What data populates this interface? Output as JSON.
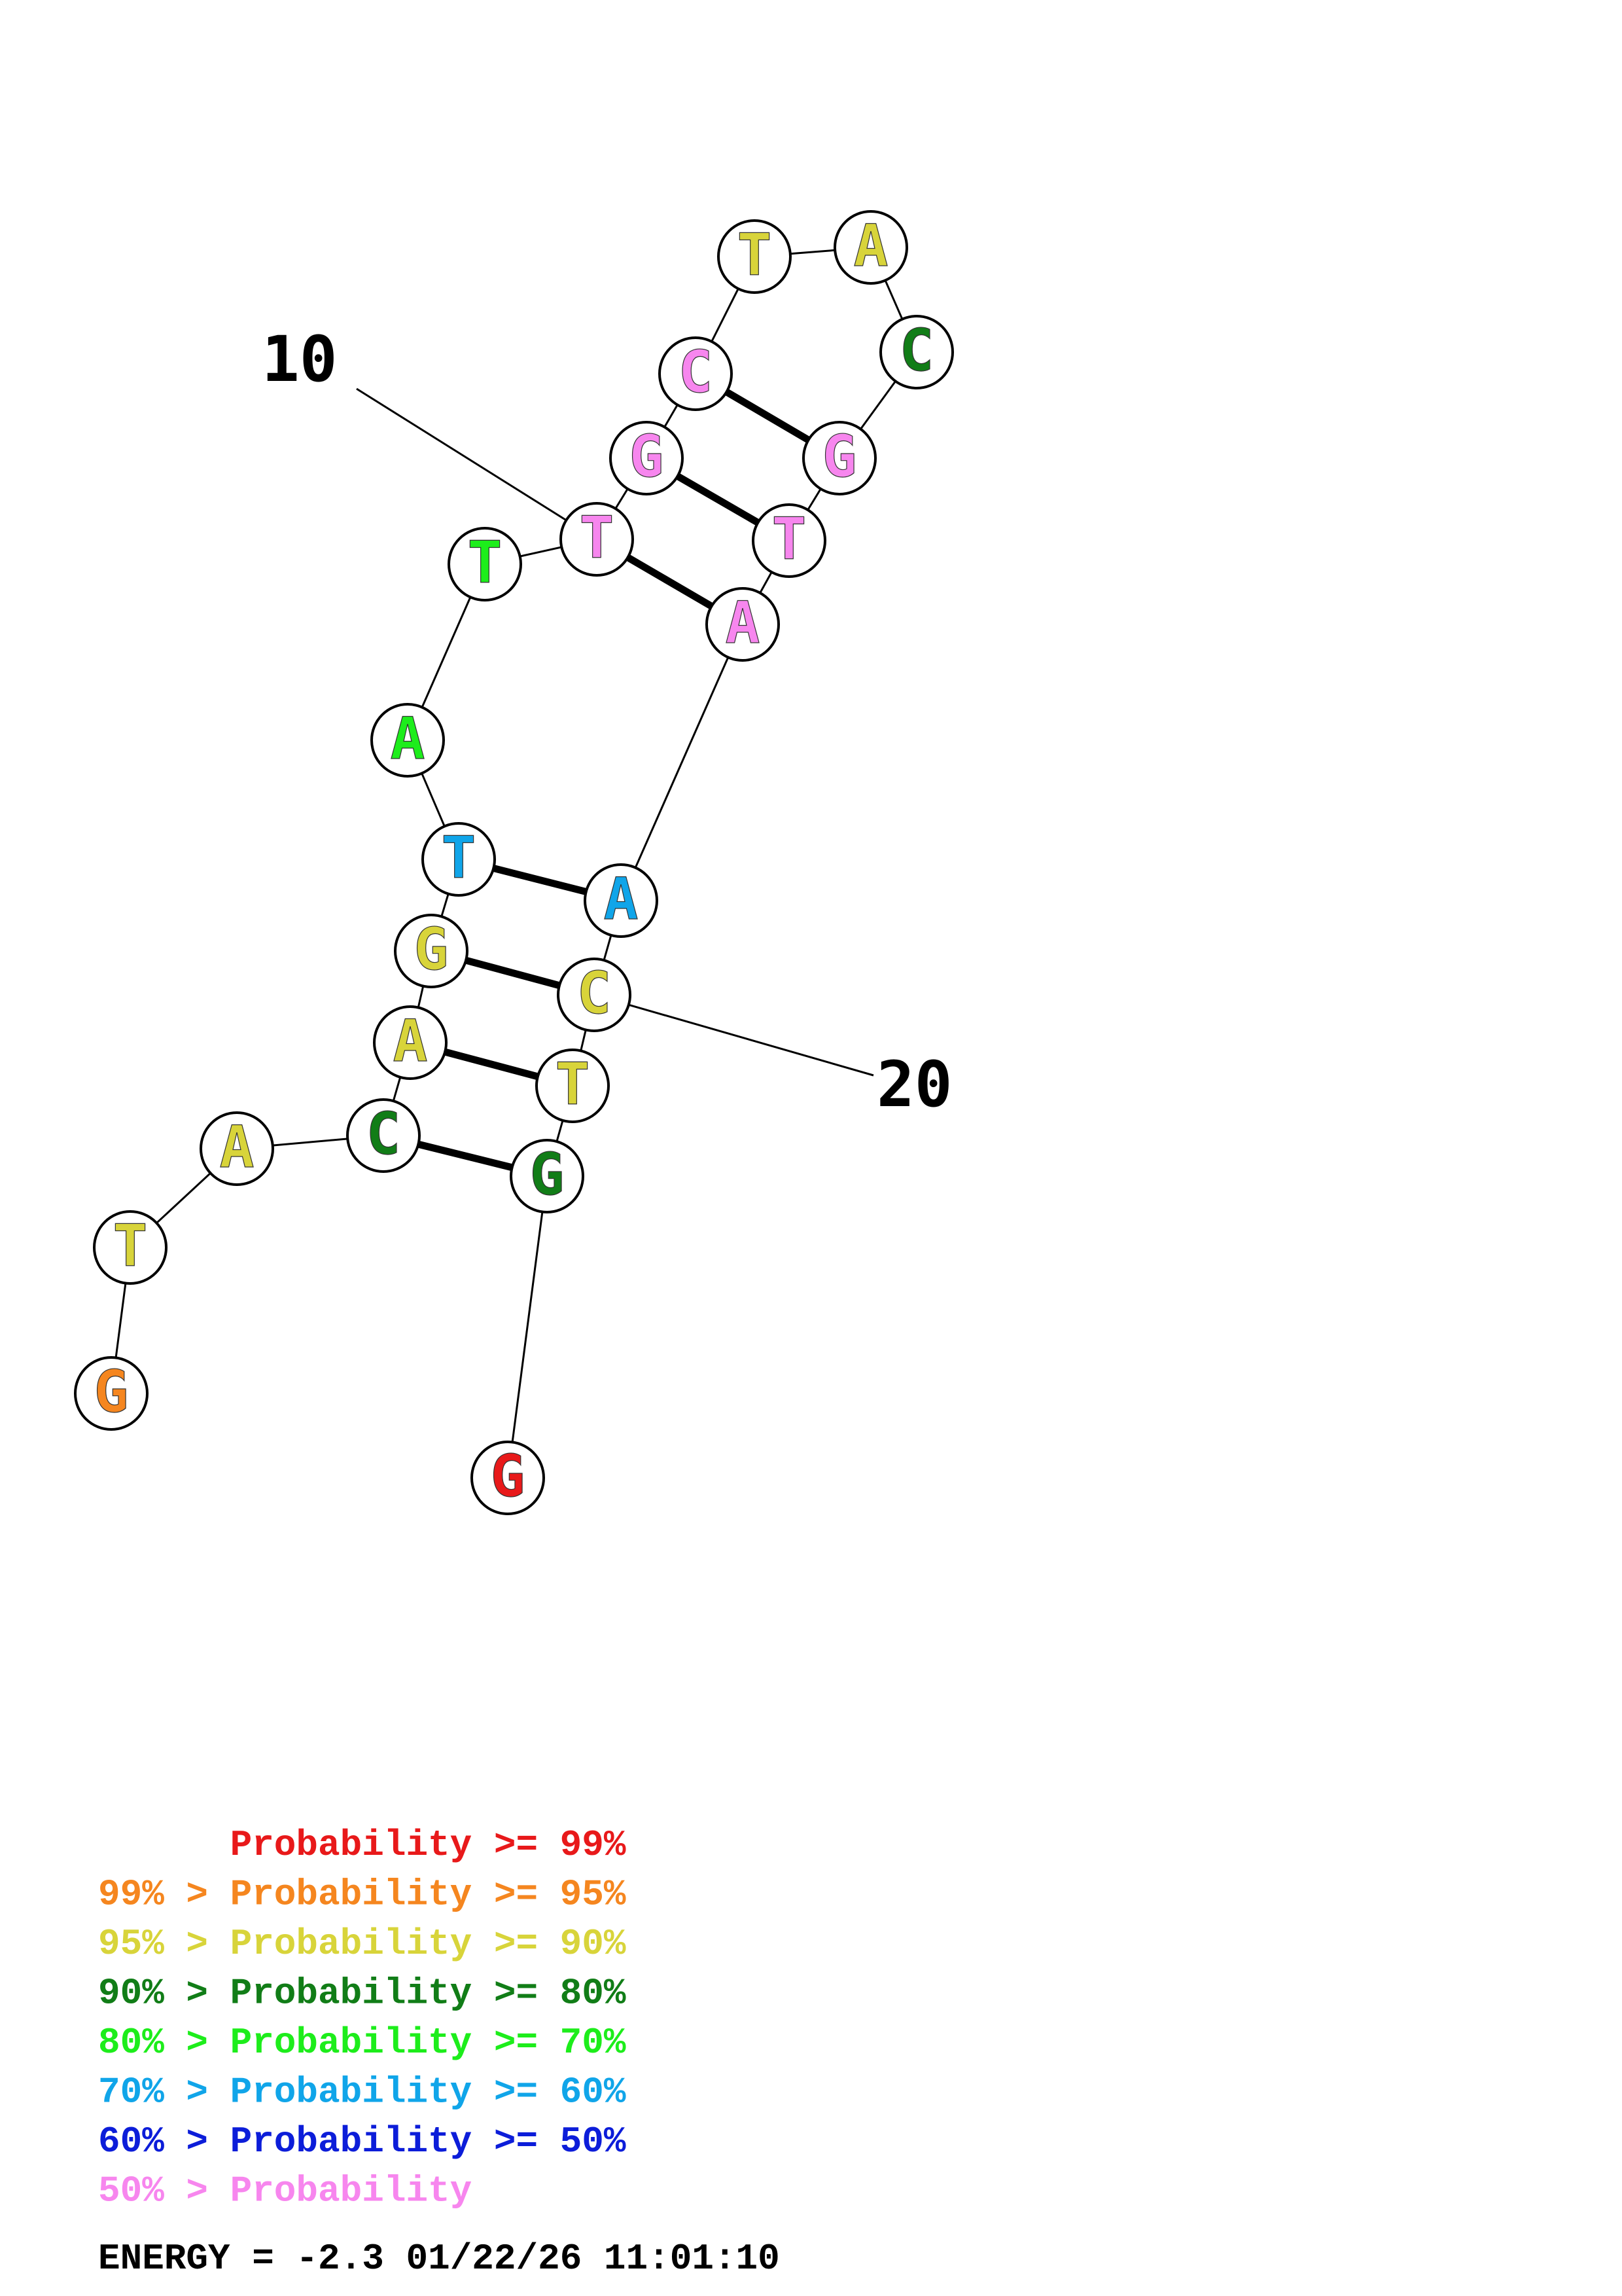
{
  "sequence": [
    "G",
    "T",
    "A",
    "C",
    "A",
    "G",
    "T",
    "A",
    "T",
    "T",
    "G",
    "C",
    "T",
    "A",
    "C",
    "G",
    "T",
    "A",
    "A",
    "C",
    "T",
    "G",
    "G"
  ],
  "nucleotide_probability_class": [
    1,
    2,
    2,
    3,
    2,
    2,
    5,
    4,
    4,
    7,
    7,
    7,
    2,
    2,
    3,
    7,
    7,
    7,
    5,
    2,
    2,
    3,
    0
  ],
  "base_pairs": [
    [
      4,
      22
    ],
    [
      5,
      21
    ],
    [
      6,
      20
    ],
    [
      7,
      19
    ],
    [
      10,
      18
    ],
    [
      11,
      17
    ],
    [
      12,
      16
    ]
  ],
  "position_labels": [
    {
      "index": 10,
      "text": "10"
    },
    {
      "index": 20,
      "text": "20"
    }
  ],
  "legend": {
    "colors": [
      "#e8191a",
      "#f5861f",
      "#d8d43a",
      "#117d17",
      "#1ded1b",
      "#10a5e9",
      "#0c1dd9",
      "#f786ee"
    ],
    "entries": [
      {
        "prefix": "",
        "text": "Probability >= 99%"
      },
      {
        "prefix": "99% > ",
        "text": "Probability >= 95%"
      },
      {
        "prefix": "95% > ",
        "text": "Probability >= 90%"
      },
      {
        "prefix": "90% > ",
        "text": "Probability >= 80%"
      },
      {
        "prefix": "80% > ",
        "text": "Probability >= 70%"
      },
      {
        "prefix": "70% > ",
        "text": "Probability >= 60%"
      },
      {
        "prefix": "60% > ",
        "text": "Probability >= 50%"
      },
      {
        "prefix": "50% > ",
        "text": "Probability"
      }
    ]
  },
  "energy_line": "ENERGY = -2.3  01/22/26 11:01:10"
}
